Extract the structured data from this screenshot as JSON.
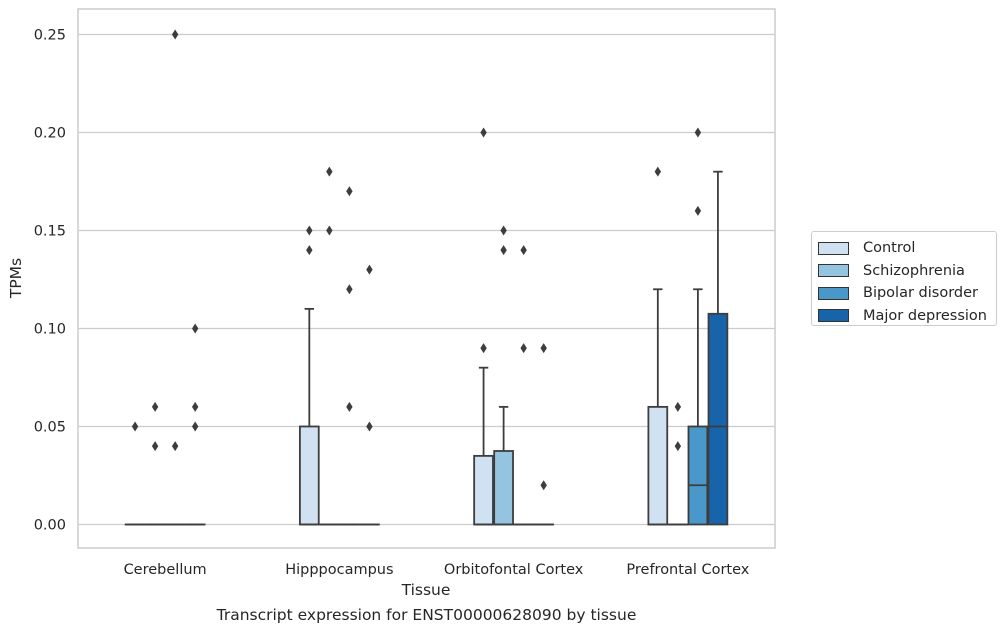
{
  "caption": "Transcript expression for ENST00000628090 by tissue",
  "chart_data": {
    "type": "box",
    "xlabel": "Tissue",
    "ylabel": "TPMs",
    "ylim": [
      -0.012,
      0.263
    ],
    "yticks": [
      0.0,
      0.05,
      0.1,
      0.15,
      0.2,
      0.25
    ],
    "ytick_labels": [
      "0.00",
      "0.05",
      "0.10",
      "0.15",
      "0.20",
      "0.25"
    ],
    "grid": true,
    "legend_position": "right",
    "categories": [
      "Cerebellum",
      "Hipppocampus",
      "Orbitofontal Cortex",
      "Prefrontal Cortex"
    ],
    "series": [
      {
        "name": "Control",
        "color": "#d0e1f2",
        "boxes": [
          {
            "q1": 0,
            "median": 0,
            "q3": 0,
            "whisker_low": 0,
            "whisker_high": 0,
            "outliers": [
              0.05
            ]
          },
          {
            "q1": 0,
            "median": 0,
            "q3": 0.05,
            "whisker_low": 0,
            "whisker_high": 0.11,
            "outliers": [
              0.14,
              0.15
            ]
          },
          {
            "q1": 0,
            "median": 0,
            "q3": 0.035,
            "whisker_low": 0,
            "whisker_high": 0.08,
            "outliers": [
              0.09,
              0.2
            ]
          },
          {
            "q1": 0,
            "median": 0,
            "q3": 0.06,
            "whisker_low": 0,
            "whisker_high": 0.12,
            "outliers": [
              0.18
            ]
          }
        ]
      },
      {
        "name": "Schizophrenia",
        "color": "#94c4df",
        "boxes": [
          {
            "q1": 0,
            "median": 0,
            "q3": 0,
            "whisker_low": 0,
            "whisker_high": 0,
            "outliers": [
              0.04,
              0.06
            ]
          },
          {
            "q1": 0,
            "median": 0,
            "q3": 0,
            "whisker_low": 0,
            "whisker_high": 0,
            "outliers": [
              0.15,
              0.18
            ]
          },
          {
            "q1": 0,
            "median": 0,
            "q3": 0.0375,
            "whisker_low": 0,
            "whisker_high": 0.06,
            "outliers": [
              0.14,
              0.15
            ]
          },
          {
            "q1": 0,
            "median": 0,
            "q3": 0,
            "whisker_low": 0,
            "whisker_high": 0,
            "outliers": [
              0.04,
              0.06
            ]
          }
        ]
      },
      {
        "name": "Bipolar disorder",
        "color": "#4a98c9",
        "boxes": [
          {
            "q1": 0,
            "median": 0,
            "q3": 0,
            "whisker_low": 0,
            "whisker_high": 0,
            "outliers": [
              0.04,
              0.25
            ]
          },
          {
            "q1": 0,
            "median": 0,
            "q3": 0,
            "whisker_low": 0,
            "whisker_high": 0,
            "outliers": [
              0.06,
              0.12,
              0.17
            ]
          },
          {
            "q1": 0,
            "median": 0,
            "q3": 0,
            "whisker_low": 0,
            "whisker_high": 0,
            "outliers": [
              0.09,
              0.14
            ]
          },
          {
            "q1": 0,
            "median": 0.02,
            "q3": 0.05,
            "whisker_low": 0,
            "whisker_high": 0.12,
            "outliers": [
              0.16,
              0.2
            ]
          }
        ]
      },
      {
        "name": "Major depression",
        "color": "#1764ab",
        "boxes": [
          {
            "q1": 0,
            "median": 0,
            "q3": 0,
            "whisker_low": 0,
            "whisker_high": 0,
            "outliers": [
              0.05,
              0.06,
              0.1
            ]
          },
          {
            "q1": 0,
            "median": 0,
            "q3": 0,
            "whisker_low": 0,
            "whisker_high": 0,
            "outliers": [
              0.05,
              0.13
            ]
          },
          {
            "q1": 0,
            "median": 0,
            "q3": 0,
            "whisker_low": 0,
            "whisker_high": 0,
            "outliers": [
              0.02,
              0.09
            ]
          },
          {
            "q1": 0,
            "median": 0.05,
            "q3": 0.1075,
            "whisker_low": 0,
            "whisker_high": 0.18,
            "outliers": []
          }
        ]
      }
    ]
  }
}
